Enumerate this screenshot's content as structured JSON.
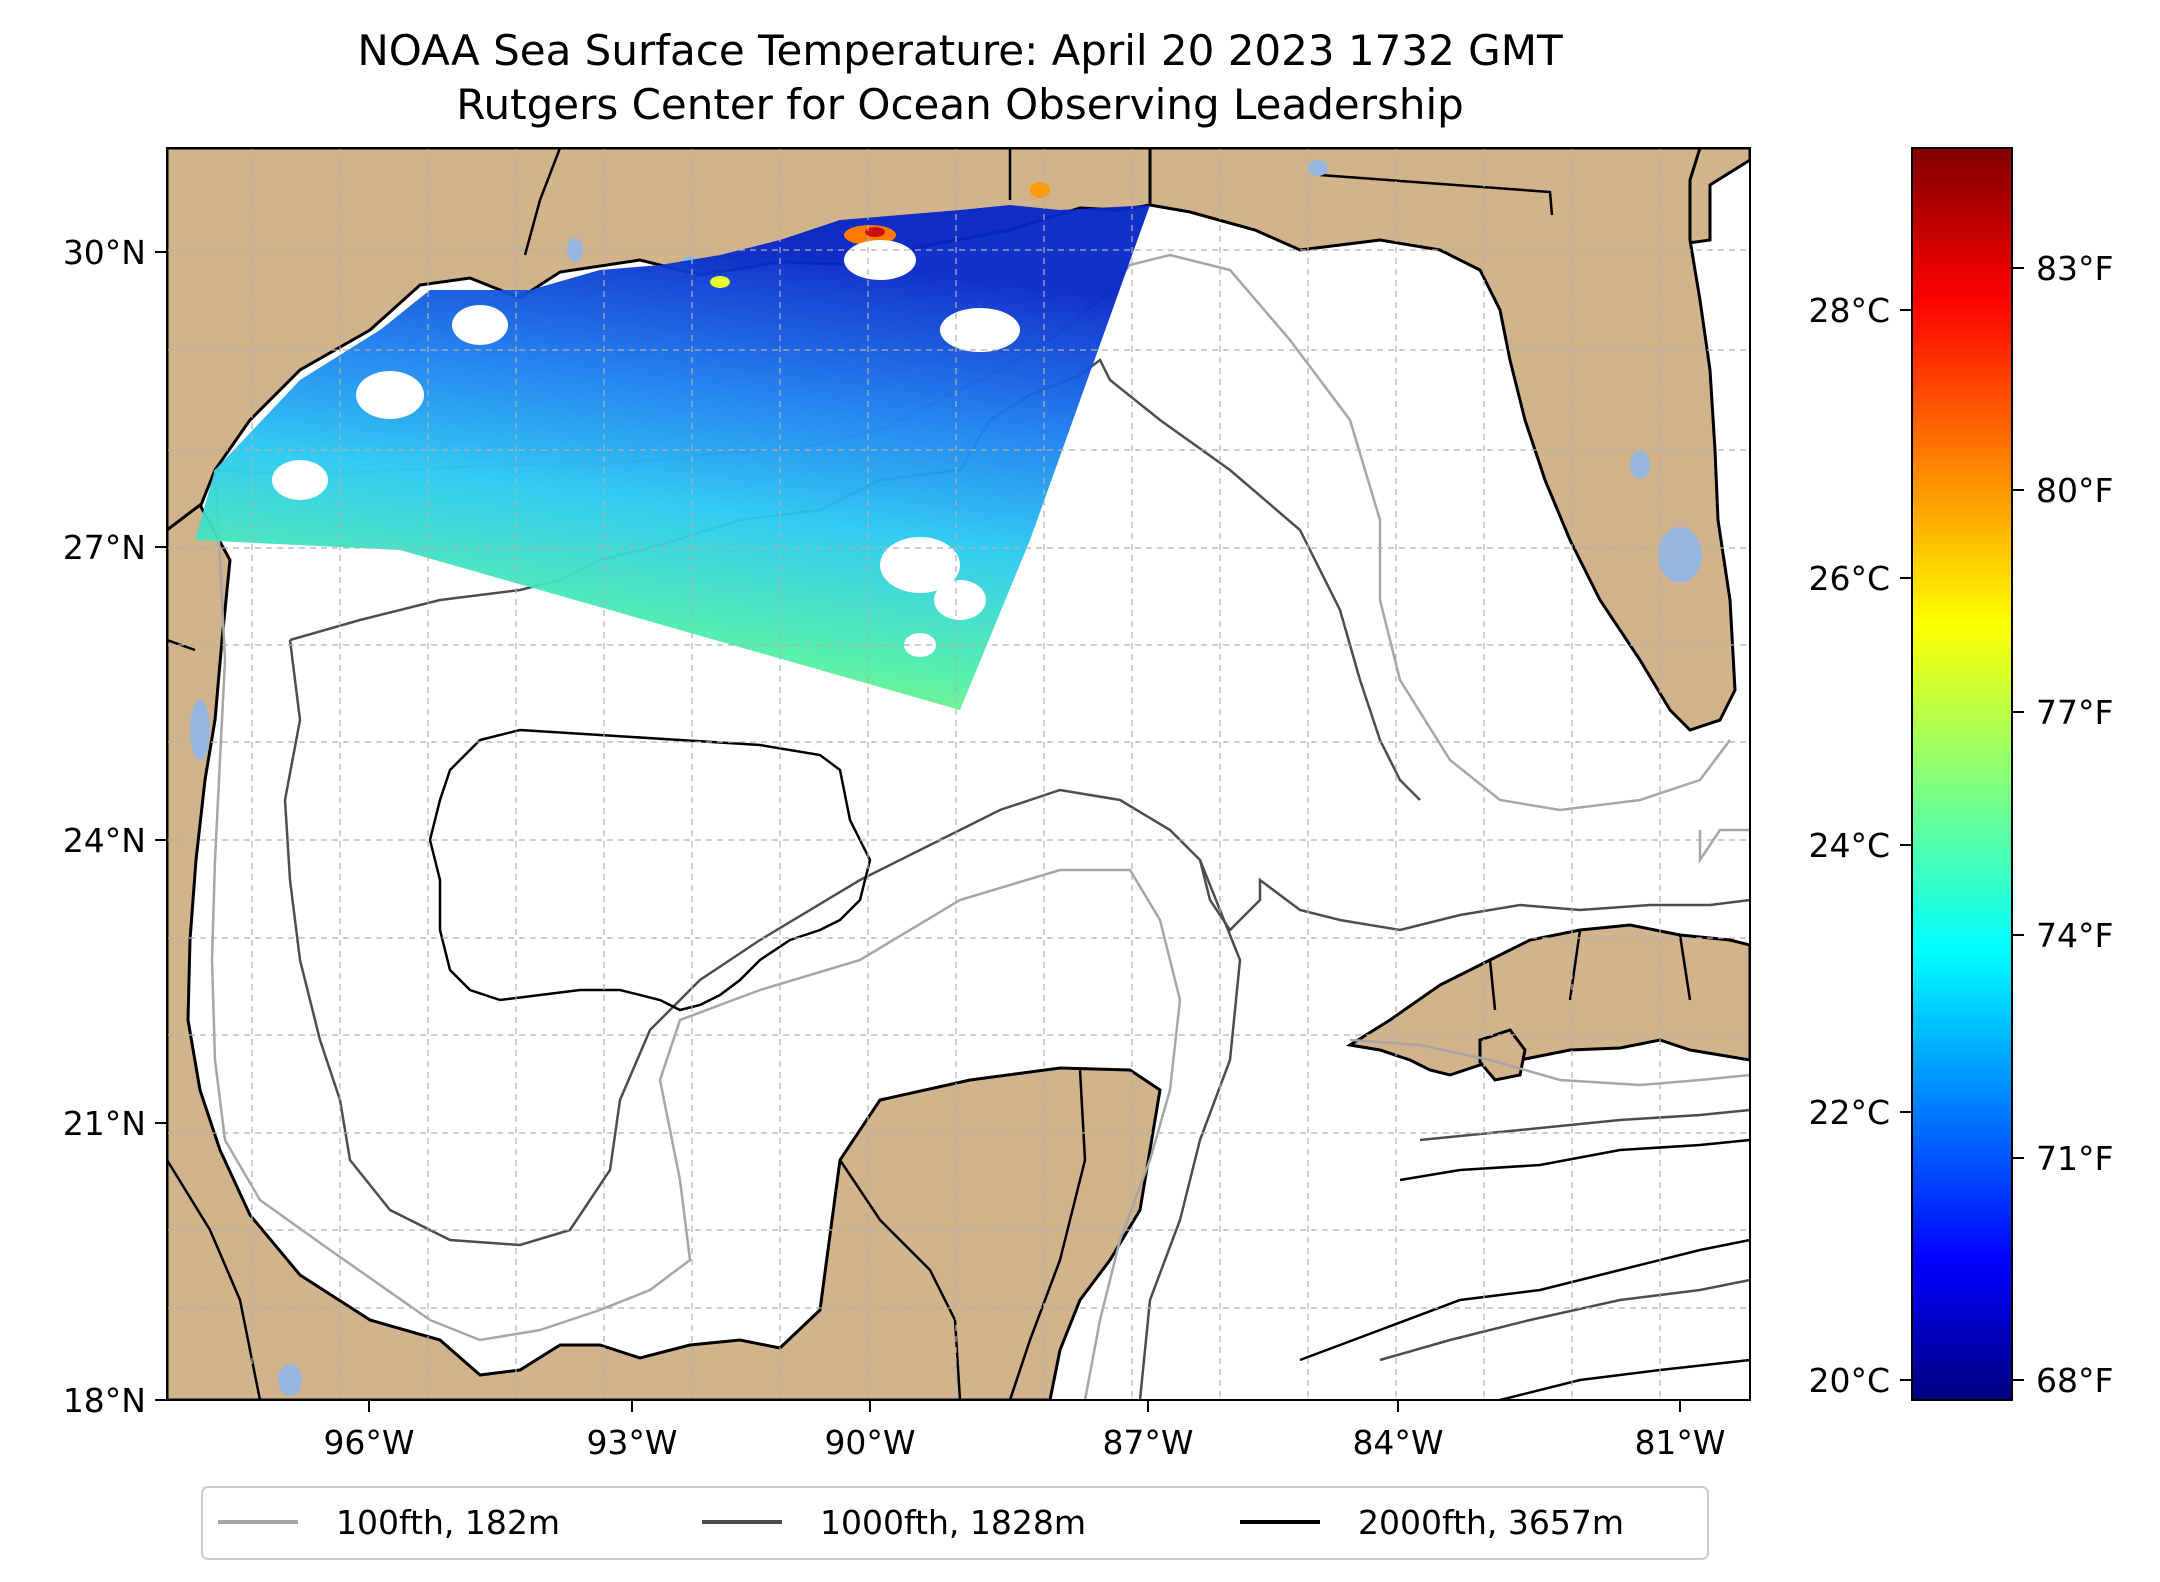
{
  "title": {
    "line1": "NOAA Sea Surface Temperature: April 20 2023 1732 GMT",
    "line2": "Rutgers Center for Ocean Observing Leadership"
  },
  "map": {
    "lat_labels": [
      "30°N",
      "27°N",
      "24°N",
      "21°N",
      "18°N"
    ],
    "lon_labels": [
      "96°W",
      "93°W",
      "90°W",
      "87°W",
      "84°W",
      "81°W"
    ],
    "colors": {
      "land": "#d2b48c",
      "water_bodies": "#97b6e1",
      "coast": "#000000",
      "grid": "#b0b0b0",
      "contour_100": "#a6a6a6",
      "contour_1000": "#4d4d4d",
      "contour_2000": "#000000"
    }
  },
  "colorbar": {
    "celsius_labels": [
      "28°C",
      "26°C",
      "24°C",
      "22°C",
      "20°C"
    ],
    "fahrenheit_labels": [
      "83°F",
      "80°F",
      "77°F",
      "74°F",
      "71°F",
      "68°F"
    ],
    "colormap": "jet"
  },
  "legend": {
    "items": [
      {
        "label": "100fth, 182m",
        "color": "#a6a6a6"
      },
      {
        "label": "1000fth, 1828m",
        "color": "#4d4d4d"
      },
      {
        "label": "2000fth, 3657m",
        "color": "#000000"
      }
    ]
  }
}
